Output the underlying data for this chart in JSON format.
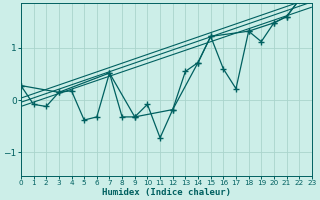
{
  "title": "",
  "xlabel": "Humidex (Indice chaleur)",
  "ylabel": "",
  "bg_color": "#cceee8",
  "line_color": "#006060",
  "grid_color": "#aad4cc",
  "xlim": [
    0,
    23
  ],
  "ylim": [
    -1.45,
    1.85
  ],
  "yticks": [
    -1,
    0,
    1
  ],
  "xticks": [
    0,
    1,
    2,
    3,
    4,
    5,
    6,
    7,
    8,
    9,
    10,
    11,
    12,
    13,
    14,
    15,
    16,
    17,
    18,
    19,
    20,
    21,
    22,
    23
  ],
  "series_main": {
    "x": [
      0,
      1,
      2,
      3,
      4,
      5,
      6,
      7,
      8,
      9,
      10,
      11,
      12,
      13,
      14,
      15,
      16,
      17,
      18,
      19,
      20,
      21,
      22,
      23
    ],
    "y": [
      0.28,
      -0.08,
      -0.12,
      0.15,
      0.18,
      -0.38,
      -0.32,
      0.52,
      -0.32,
      -0.32,
      -0.08,
      -0.72,
      -0.18,
      0.55,
      0.72,
      1.22,
      0.6,
      0.22,
      1.32,
      1.12,
      1.48,
      1.6,
      1.92,
      1.95
    ]
  },
  "series2": {
    "x": [
      0,
      3,
      7,
      9,
      12,
      14,
      15,
      18,
      20,
      21,
      22,
      23
    ],
    "y": [
      0.28,
      0.15,
      0.52,
      -0.32,
      -0.18,
      0.72,
      1.22,
      1.32,
      1.48,
      1.6,
      1.92,
      1.95
    ]
  },
  "regression_lines": [
    {
      "x": [
        0,
        23
      ],
      "y": [
        -0.12,
        1.78
      ]
    },
    {
      "x": [
        0,
        23
      ],
      "y": [
        -0.04,
        1.88
      ]
    },
    {
      "x": [
        0,
        23
      ],
      "y": [
        0.04,
        1.96
      ]
    }
  ]
}
